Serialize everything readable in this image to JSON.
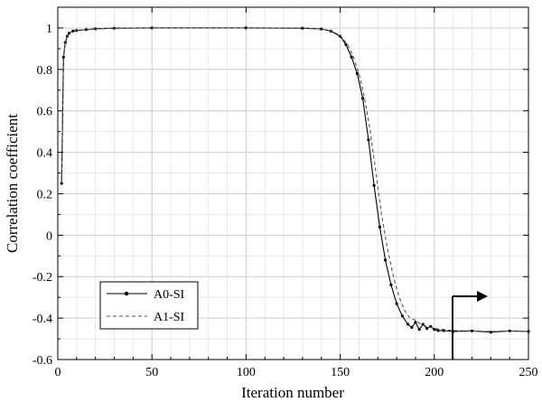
{
  "chart_data": {
    "type": "line",
    "xlabel": "Iteration number",
    "ylabel": "Correlation coefficient",
    "xlim": [
      0,
      250
    ],
    "ylim": [
      -0.6,
      1.1
    ],
    "x_ticks": [
      0,
      50,
      100,
      150,
      200,
      250
    ],
    "y_ticks": [
      -0.6,
      -0.4,
      -0.2,
      0,
      0.2,
      0.4,
      0.6,
      0.8,
      1
    ],
    "grid": true,
    "legend_position": "bottom-left",
    "series": [
      {
        "name": "A0-SI",
        "line_style": "solid",
        "marker": "dot",
        "color": "#000000",
        "points": [
          [
            2,
            0.25
          ],
          [
            3,
            0.86
          ],
          [
            4,
            0.93
          ],
          [
            5,
            0.96
          ],
          [
            6,
            0.975
          ],
          [
            8,
            0.985
          ],
          [
            10,
            0.988
          ],
          [
            15,
            0.992
          ],
          [
            20,
            0.996
          ],
          [
            30,
            0.999
          ],
          [
            50,
            1.0
          ],
          [
            100,
            1.0
          ],
          [
            130,
            0.999
          ],
          [
            140,
            0.995
          ],
          [
            145,
            0.985
          ],
          [
            150,
            0.96
          ],
          [
            153,
            0.92
          ],
          [
            156,
            0.86
          ],
          [
            159,
            0.78
          ],
          [
            162,
            0.66
          ],
          [
            165,
            0.46
          ],
          [
            168,
            0.24
          ],
          [
            171,
            0.04
          ],
          [
            174,
            -0.12
          ],
          [
            177,
            -0.24
          ],
          [
            180,
            -0.33
          ],
          [
            183,
            -0.39
          ],
          [
            186,
            -0.43
          ],
          [
            188,
            -0.445
          ],
          [
            190,
            -0.42
          ],
          [
            192,
            -0.455
          ],
          [
            194,
            -0.43
          ],
          [
            196,
            -0.45
          ],
          [
            198,
            -0.44
          ],
          [
            200,
            -0.455
          ],
          [
            202,
            -0.46
          ],
          [
            205,
            -0.46
          ],
          [
            210,
            -0.465
          ],
          [
            220,
            -0.462
          ],
          [
            230,
            -0.468
          ],
          [
            240,
            -0.462
          ],
          [
            250,
            -0.465
          ]
        ]
      },
      {
        "name": "A1-SI",
        "line_style": "dashed",
        "marker": "none",
        "color": "#555555",
        "points": [
          [
            2,
            0.25
          ],
          [
            3,
            0.86
          ],
          [
            4,
            0.93
          ],
          [
            5,
            0.96
          ],
          [
            6,
            0.975
          ],
          [
            8,
            0.985
          ],
          [
            10,
            0.988
          ],
          [
            15,
            0.992
          ],
          [
            20,
            0.996
          ],
          [
            30,
            0.999
          ],
          [
            50,
            1.0
          ],
          [
            100,
            1.0
          ],
          [
            130,
            0.999
          ],
          [
            140,
            0.995
          ],
          [
            145,
            0.986
          ],
          [
            150,
            0.965
          ],
          [
            154,
            0.92
          ],
          [
            157,
            0.86
          ],
          [
            160,
            0.78
          ],
          [
            163,
            0.66
          ],
          [
            166,
            0.5
          ],
          [
            169,
            0.3
          ],
          [
            172,
            0.1
          ],
          [
            175,
            -0.06
          ],
          [
            178,
            -0.19
          ],
          [
            181,
            -0.29
          ],
          [
            184,
            -0.36
          ],
          [
            187,
            -0.4
          ],
          [
            190,
            -0.41
          ],
          [
            193,
            -0.43
          ],
          [
            196,
            -0.44
          ],
          [
            200,
            -0.45
          ],
          [
            205,
            -0.455
          ],
          [
            210,
            -0.46
          ],
          [
            220,
            -0.462
          ],
          [
            230,
            -0.465
          ],
          [
            240,
            -0.462
          ],
          [
            250,
            -0.465
          ]
        ]
      }
    ]
  }
}
